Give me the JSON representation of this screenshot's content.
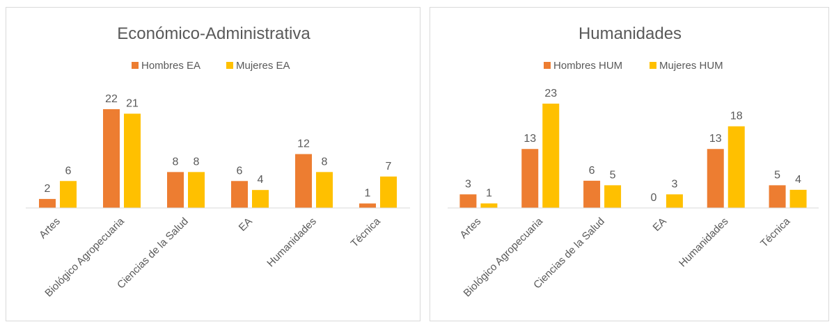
{
  "chart_data": [
    {
      "type": "bar",
      "title": "Económico-Administrativa",
      "categories": [
        "Artes",
        "Biológico Agropecuaria",
        "Ciencias de la Salud",
        "EA",
        "Humanidades",
        "Técnica"
      ],
      "series": [
        {
          "name": "Hombres EA",
          "values": [
            2,
            22,
            8,
            6,
            12,
            1
          ],
          "color": "#ED7D31"
        },
        {
          "name": "Mujeres EA",
          "values": [
            6,
            21,
            8,
            4,
            8,
            7
          ],
          "color": "#FFC000"
        }
      ],
      "ylim": [
        0,
        22
      ],
      "legend": "top",
      "grid": false,
      "data_labels": true
    },
    {
      "type": "bar",
      "title": "Humanidades",
      "categories": [
        "Artes",
        "Biológico Agropecuaria",
        "Ciencias de la Salud",
        "EA",
        "Humanidades",
        "Técnica"
      ],
      "series": [
        {
          "name": "Hombres HUM",
          "values": [
            3,
            13,
            6,
            0,
            13,
            5
          ],
          "color": "#ED7D31"
        },
        {
          "name": "Mujeres HUM",
          "values": [
            1,
            23,
            5,
            3,
            18,
            4
          ],
          "color": "#FFC000"
        }
      ],
      "ylim": [
        0,
        23
      ],
      "legend": "top",
      "grid": false,
      "data_labels": true
    }
  ]
}
